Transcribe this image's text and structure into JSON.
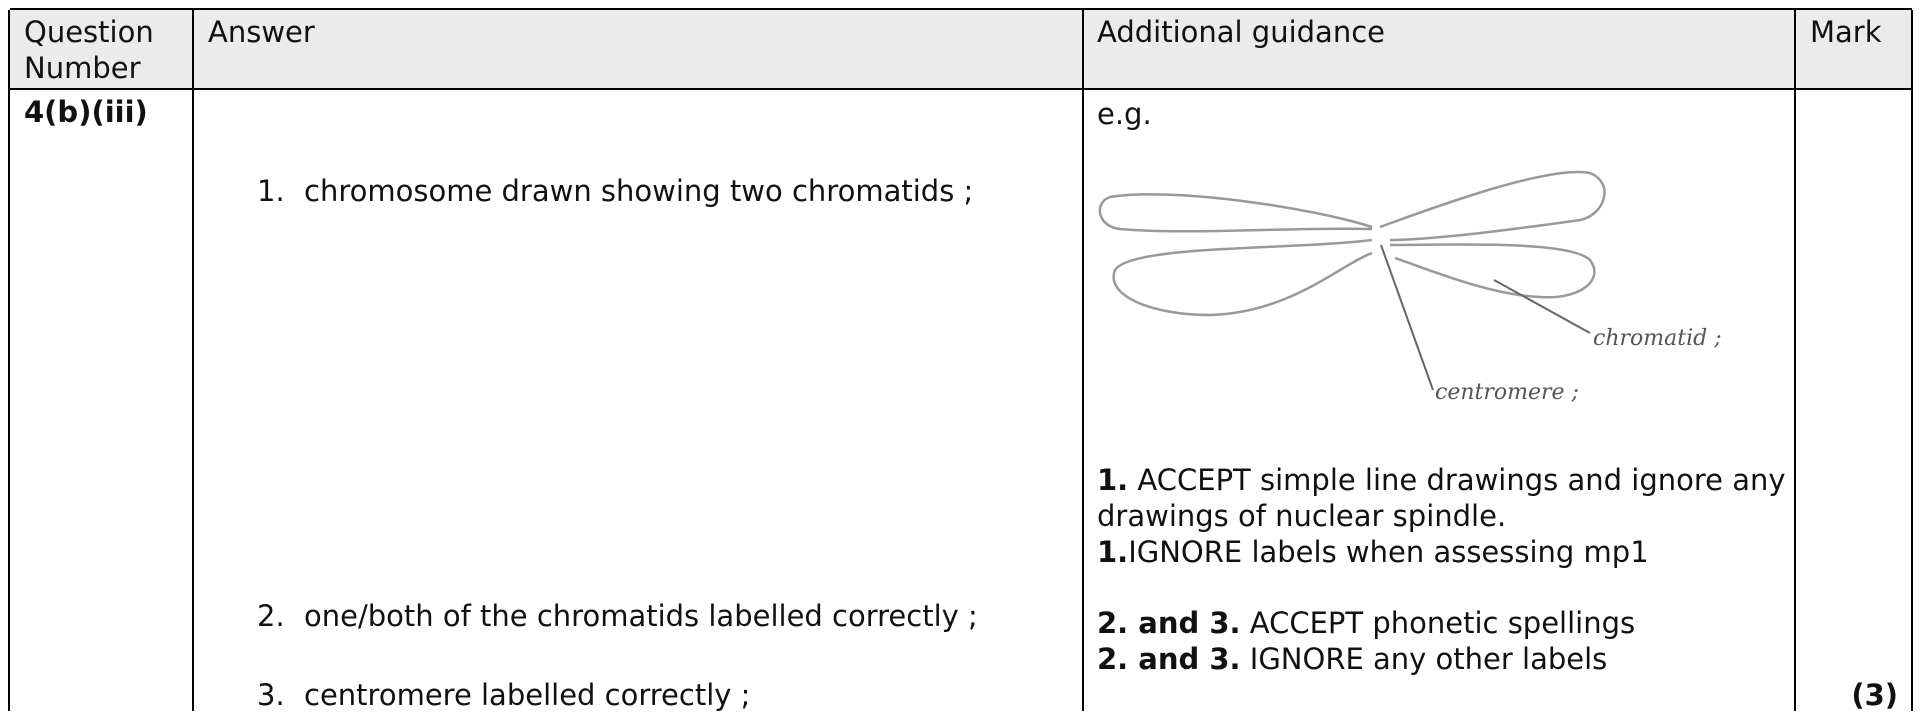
{
  "table": {
    "header": [
      "Question Number",
      "Answer",
      "Additional guidance",
      "Mark"
    ],
    "row": {
      "question": "4(b)(iii)",
      "answers": [
        {
          "number": "1.",
          "text": "chromosome drawn showing two chromatids ;"
        },
        {
          "number": "2.",
          "text": "one/both of the chromatids labelled correctly ;"
        },
        {
          "number": "3.",
          "text": "centromere labelled correctly ;"
        }
      ],
      "guidance": {
        "intro": "e.g.",
        "drawing_labels": [
          "chromatid ;",
          "centromere ;"
        ],
        "notes": [
          {
            "bold": "1.",
            "text": "ACCEPT simple line drawings and ignore any drawings of nuclear spindle."
          },
          {
            "bold": "1.",
            "text": "IGNORE labels when assessing mp1"
          },
          {
            "bold": "2. and 3.",
            "text": "ACCEPT phonetic spellings"
          },
          {
            "bold": "2. and 3.",
            "text": "IGNORE any other labels"
          }
        ]
      },
      "mark": "(3)"
    }
  }
}
